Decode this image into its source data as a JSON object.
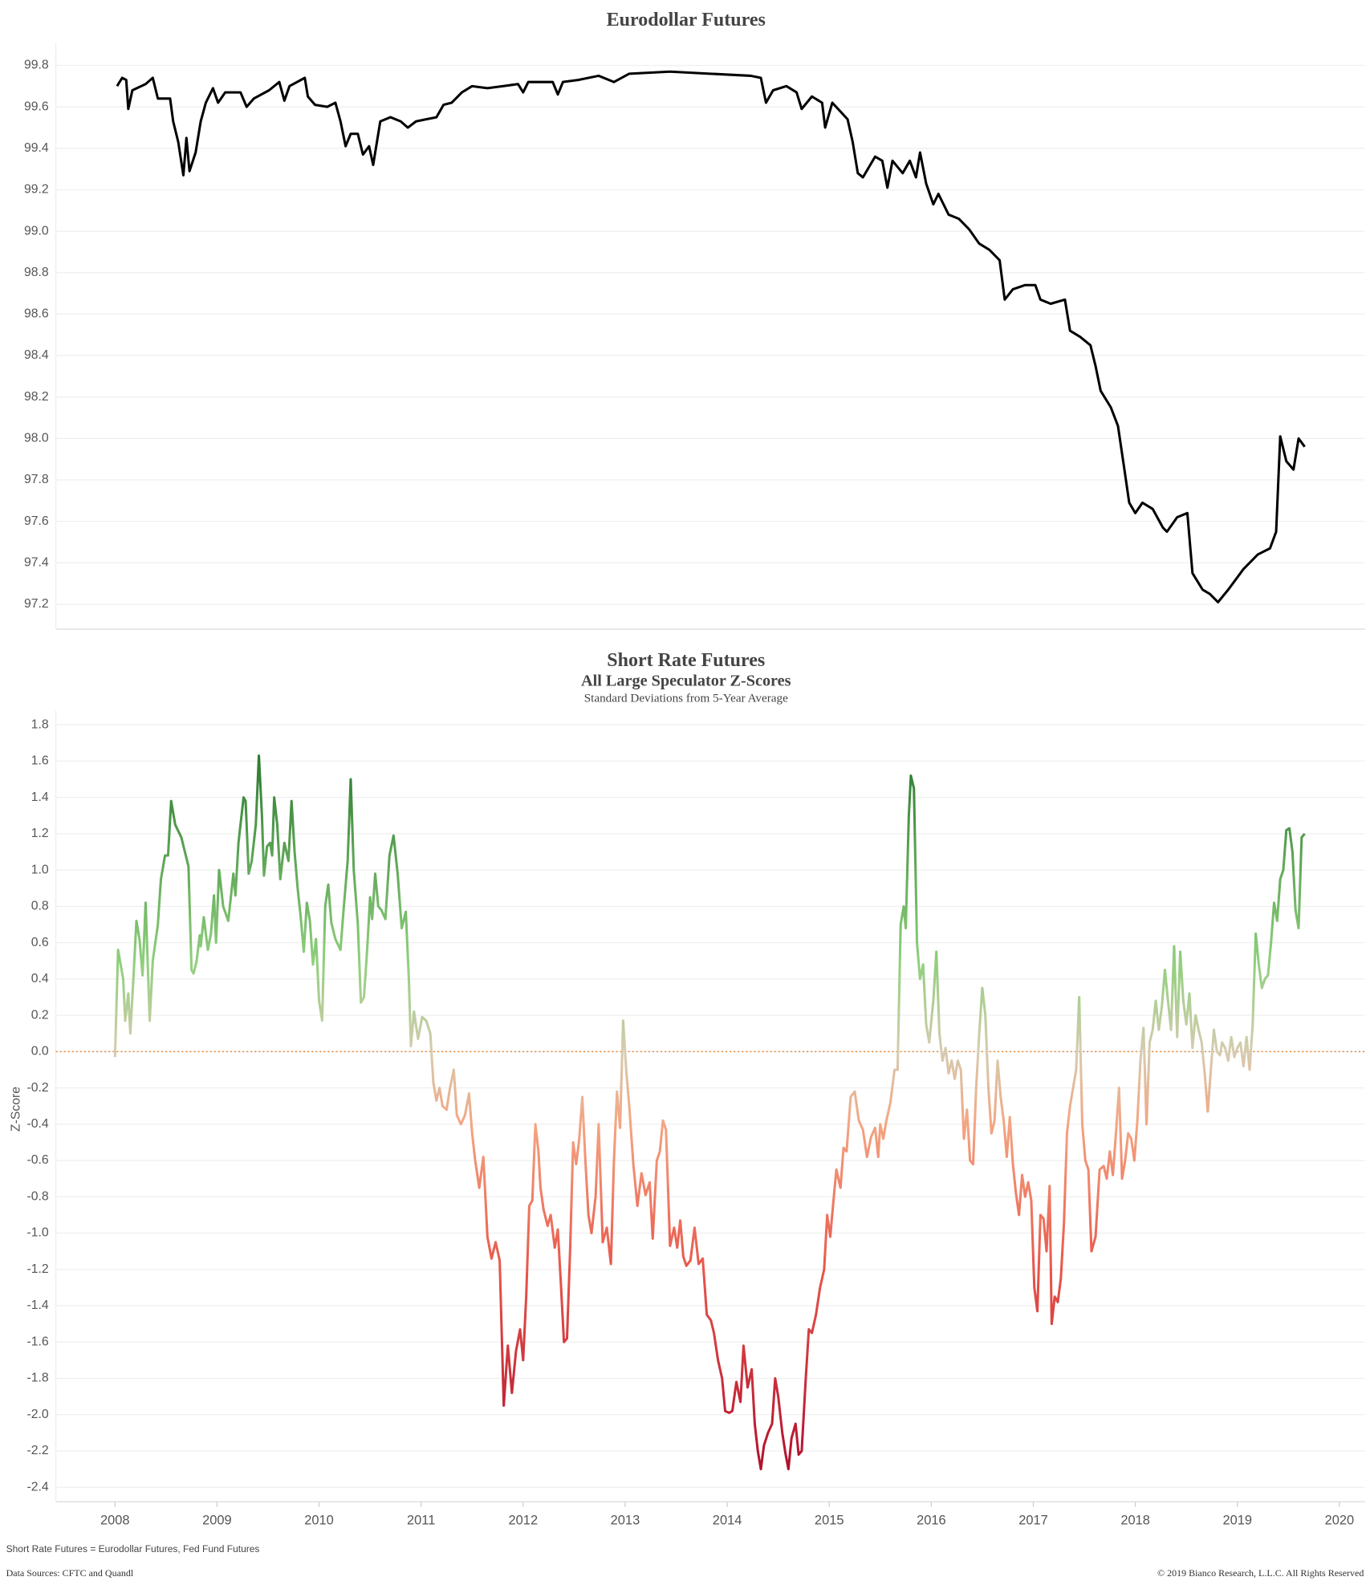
{
  "chart_data": [
    {
      "type": "line",
      "title": "Eurodollar Futures",
      "color": "#000000",
      "grid": true,
      "xlim": [
        2007.42,
        2020.25
      ],
      "ylim": [
        97.08,
        99.91
      ],
      "yticks": [
        97.2,
        97.4,
        97.6,
        97.8,
        {
          "value": 98.0,
          "label": "98.0"
        },
        98.2,
        98.4,
        98.6,
        98.8,
        {
          "value": 99.0,
          "label": "99.0"
        },
        99.2,
        99.4,
        99.6,
        99.8
      ],
      "x": [
        2008.02,
        2008.07,
        2008.11,
        2008.13,
        2008.17,
        2008.3,
        2008.37,
        2008.42,
        2008.54,
        2008.57,
        2008.62,
        2008.67,
        2008.7,
        2008.73,
        2008.79,
        2008.84,
        2008.89,
        2008.96,
        2009.01,
        2009.08,
        2009.23,
        2009.29,
        2009.36,
        2009.51,
        2009.61,
        2009.66,
        2009.71,
        2009.86,
        2009.89,
        2009.96,
        2010.08,
        2010.16,
        2010.21,
        2010.26,
        2010.31,
        2010.38,
        2010.43,
        2010.49,
        2010.53,
        2010.6,
        2010.7,
        2010.8,
        2010.87,
        2010.95,
        2011.05,
        2011.15,
        2011.22,
        2011.3,
        2011.4,
        2011.5,
        2011.65,
        2011.8,
        2011.95,
        2012.0,
        2012.05,
        2012.29,
        2012.34,
        2012.39,
        2012.54,
        2012.74,
        2012.89,
        2013.04,
        2013.44,
        2013.83,
        2014.23,
        2014.33,
        2014.38,
        2014.45,
        2014.58,
        2014.68,
        2014.73,
        2014.83,
        2014.93,
        2014.96,
        2015.03,
        2015.18,
        2015.23,
        2015.28,
        2015.33,
        2015.45,
        2015.52,
        2015.57,
        2015.62,
        2015.72,
        2015.79,
        2015.85,
        2015.89,
        2015.95,
        2016.02,
        2016.07,
        2016.17,
        2016.27,
        2016.37,
        2016.47,
        2016.57,
        2016.67,
        2016.72,
        2016.8,
        2016.92,
        2017.02,
        2017.07,
        2017.17,
        2017.31,
        2017.36,
        2017.46,
        2017.56,
        2017.61,
        2017.66,
        2017.76,
        2017.83,
        2017.89,
        2017.94,
        2018.0,
        2018.07,
        2018.17,
        2018.27,
        2018.31,
        2018.41,
        2018.51,
        2018.56,
        2018.66,
        2018.73,
        2018.81,
        2018.91,
        2019.06,
        2019.2,
        2019.32,
        2019.38,
        2019.42,
        2019.48,
        2019.55,
        2019.6,
        2019.66
      ],
      "values": [
        99.7,
        99.74,
        99.73,
        99.59,
        99.68,
        99.71,
        99.74,
        99.64,
        99.64,
        99.53,
        99.43,
        99.27,
        99.45,
        99.29,
        99.38,
        99.53,
        99.62,
        99.69,
        99.62,
        99.67,
        99.67,
        99.6,
        99.64,
        99.68,
        99.72,
        99.63,
        99.7,
        99.74,
        99.65,
        99.61,
        99.6,
        99.62,
        99.53,
        99.41,
        99.47,
        99.47,
        99.37,
        99.41,
        99.32,
        99.53,
        99.55,
        99.53,
        99.5,
        99.53,
        99.54,
        99.55,
        99.61,
        99.62,
        99.67,
        99.7,
        99.69,
        99.7,
        99.71,
        99.67,
        99.72,
        99.72,
        99.66,
        99.72,
        99.73,
        99.75,
        99.72,
        99.76,
        99.77,
        99.76,
        99.75,
        99.74,
        99.62,
        99.68,
        99.7,
        99.67,
        99.59,
        99.65,
        99.62,
        99.5,
        99.62,
        99.54,
        99.43,
        99.28,
        99.26,
        99.36,
        99.34,
        99.21,
        99.34,
        99.28,
        99.34,
        99.26,
        99.38,
        99.23,
        99.13,
        99.18,
        99.08,
        99.06,
        99.01,
        98.94,
        98.91,
        98.86,
        98.67,
        98.72,
        98.74,
        98.74,
        98.67,
        98.65,
        98.67,
        98.52,
        98.49,
        98.45,
        98.35,
        98.23,
        98.15,
        98.06,
        97.86,
        97.69,
        97.64,
        97.69,
        97.66,
        97.57,
        97.55,
        97.62,
        97.64,
        97.35,
        97.27,
        97.25,
        97.21,
        97.27,
        97.37,
        97.44,
        97.47,
        97.55,
        98.01,
        97.89,
        97.85,
        98.0,
        97.96
      ]
    },
    {
      "type": "line",
      "title": "Short Rate Futures",
      "subtitle": "All Large Speculator Z-Scores",
      "note": "Standard Deviations from 5-Year Average",
      "ylabel": "Z-Score",
      "grid": true,
      "xlim": [
        2007.42,
        2020.25
      ],
      "ylim": [
        -2.48,
        1.88
      ],
      "xticks": [
        2008,
        2009,
        2010,
        2011,
        2012,
        2013,
        2014,
        2015,
        2016,
        2017,
        2018,
        2019,
        2020
      ],
      "yticks": [
        -2.4,
        -2.2,
        {
          "value": -2.0,
          "label": "-2.0"
        },
        -1.8,
        -1.6,
        -1.4,
        -1.2,
        {
          "value": -1.0,
          "label": "-1.0"
        },
        -0.8,
        -0.6,
        -0.4,
        -0.2,
        {
          "value": 0.0,
          "label": "0.0"
        },
        0.2,
        0.4,
        0.6,
        0.8,
        {
          "value": 1.0,
          "label": "1.0"
        },
        1.2,
        1.4,
        1.6,
        1.8
      ],
      "reference_line": {
        "value": 0,
        "color": "#e8822a",
        "style": "dotted"
      },
      "color_stops": [
        {
          "value": 1.6,
          "color": "#2f7d32"
        },
        {
          "value": 0.5,
          "color": "#8fcf7c"
        },
        {
          "value": 0,
          "color": "#d6ccb0"
        },
        {
          "value": -0.4,
          "color": "#f4a582"
        },
        {
          "value": -1.2,
          "color": "#e8564a"
        },
        {
          "value": -2.3,
          "color": "#b0102e"
        }
      ],
      "x": [
        2008.0,
        2008.03,
        2008.08,
        2008.1,
        2008.13,
        2008.15,
        2008.18,
        2008.21,
        2008.24,
        2008.27,
        2008.3,
        2008.34,
        2008.37,
        2008.42,
        2008.45,
        2008.49,
        2008.52,
        2008.55,
        2008.59,
        2008.65,
        2008.72,
        2008.75,
        2008.77,
        2008.8,
        2008.83,
        2008.84,
        2008.87,
        2008.91,
        2008.94,
        2008.97,
        2008.99,
        2009.02,
        2009.06,
        2009.11,
        2009.16,
        2009.18,
        2009.21,
        2009.26,
        2009.28,
        2009.31,
        2009.34,
        2009.38,
        2009.41,
        2009.44,
        2009.46,
        2009.49,
        2009.52,
        2009.54,
        2009.56,
        2009.59,
        2009.62,
        2009.66,
        2009.7,
        2009.73,
        2009.76,
        2009.79,
        2009.82,
        2009.85,
        2009.88,
        2009.91,
        2009.94,
        2009.97,
        2010.0,
        2010.03,
        2010.06,
        2010.09,
        2010.12,
        2010.16,
        2010.21,
        2010.24,
        2010.28,
        2010.31,
        2010.34,
        2010.38,
        2010.41,
        2010.44,
        2010.47,
        2010.5,
        2010.52,
        2010.55,
        2010.58,
        2010.61,
        2010.65,
        2010.69,
        2010.73,
        2010.77,
        2010.81,
        2010.85,
        2010.88,
        2010.9,
        2010.93,
        2010.97,
        2011.01,
        2011.05,
        2011.09,
        2011.12,
        2011.15,
        2011.18,
        2011.21,
        2011.25,
        2011.28,
        2011.32,
        2011.35,
        2011.39,
        2011.43,
        2011.47,
        2011.5,
        2011.53,
        2011.57,
        2011.61,
        2011.65,
        2011.69,
        2011.73,
        2011.77,
        2011.81,
        2011.85,
        2011.89,
        2011.93,
        2011.97,
        2012.0,
        2012.03,
        2012.06,
        2012.09,
        2012.12,
        2012.15,
        2012.17,
        2012.2,
        2012.24,
        2012.27,
        2012.31,
        2012.34,
        2012.37,
        2012.4,
        2012.43,
        2012.46,
        2012.49,
        2012.52,
        2012.55,
        2012.58,
        2012.61,
        2012.64,
        2012.67,
        2012.71,
        2012.74,
        2012.78,
        2012.82,
        2012.86,
        2012.89,
        2012.92,
        2012.95,
        2012.98,
        2013.01,
        2013.04,
        2013.08,
        2013.12,
        2013.16,
        2013.2,
        2013.24,
        2013.27,
        2013.31,
        2013.34,
        2013.37,
        2013.4,
        2013.44,
        2013.48,
        2013.51,
        2013.54,
        2013.57,
        2013.6,
        2013.64,
        2013.68,
        2013.72,
        2013.76,
        2013.8,
        2013.84,
        2013.87,
        2013.91,
        2013.95,
        2013.98,
        2014.02,
        2014.05,
        2014.09,
        2014.13,
        2014.16,
        2014.2,
        2014.24,
        2014.27,
        2014.3,
        2014.33,
        2014.36,
        2014.4,
        2014.44,
        2014.47,
        2014.5,
        2014.54,
        2014.57,
        2014.6,
        2014.63,
        2014.67,
        2014.7,
        2014.73,
        2014.77,
        2014.8,
        2014.83,
        2014.87,
        2014.91,
        2014.95,
        2014.98,
        2015.01,
        2015.04,
        2015.07,
        2015.11,
        2015.14,
        2015.17,
        2015.21,
        2015.25,
        2015.29,
        2015.33,
        2015.37,
        2015.41,
        2015.45,
        2015.48,
        2015.5,
        2015.53,
        2015.56,
        2015.6,
        2015.64,
        2015.67,
        2015.7,
        2015.73,
        2015.75,
        2015.78,
        2015.8,
        2015.83,
        2015.86,
        2015.89,
        2015.92,
        2015.95,
        2015.98,
        2016.02,
        2016.05,
        2016.08,
        2016.11,
        2016.14,
        2016.17,
        2016.2,
        2016.23,
        2016.26,
        2016.29,
        2016.32,
        2016.35,
        2016.38,
        2016.41,
        2016.44,
        2016.47,
        2016.5,
        2016.53,
        2016.56,
        2016.59,
        2016.62,
        2016.65,
        2016.68,
        2016.71,
        2016.74,
        2016.77,
        2016.8,
        2016.83,
        2016.86,
        2016.89,
        2016.92,
        2016.95,
        2016.98,
        2017.01,
        2017.04,
        2017.07,
        2017.1,
        2017.13,
        2017.16,
        2017.18,
        2017.21,
        2017.24,
        2017.27,
        2017.3,
        2017.33,
        2017.36,
        2017.39,
        2017.42,
        2017.45,
        2017.48,
        2017.51,
        2017.54,
        2017.57,
        2017.61,
        2017.65,
        2017.69,
        2017.72,
        2017.75,
        2017.78,
        2017.81,
        2017.84,
        2017.87,
        2017.9,
        2017.93,
        2017.96,
        2017.99,
        2018.02,
        2018.05,
        2018.08,
        2018.11,
        2018.14,
        2018.17,
        2018.2,
        2018.23,
        2018.26,
        2018.29,
        2018.32,
        2018.35,
        2018.38,
        2018.41,
        2018.44,
        2018.47,
        2018.5,
        2018.53,
        2018.56,
        2018.59,
        2018.62,
        2018.65,
        2018.68,
        2018.71,
        2018.74,
        2018.77,
        2018.8,
        2018.83,
        2018.85,
        2018.88,
        2018.91,
        2018.94,
        2018.97,
        2019.0,
        2019.03,
        2019.06,
        2019.09,
        2019.12,
        2019.15,
        2019.18,
        2019.21,
        2019.24,
        2019.27,
        2019.3,
        2019.33,
        2019.36,
        2019.39,
        2019.42,
        2019.45,
        2019.48,
        2019.51,
        2019.54,
        2019.57,
        2019.6,
        2019.63,
        2019.66
      ],
      "values": [
        -0.03,
        0.56,
        0.4,
        0.17,
        0.32,
        0.1,
        0.4,
        0.72,
        0.62,
        0.42,
        0.82,
        0.17,
        0.5,
        0.7,
        0.95,
        1.08,
        1.08,
        1.38,
        1.25,
        1.18,
        1.02,
        0.45,
        0.43,
        0.5,
        0.64,
        0.58,
        0.74,
        0.56,
        0.65,
        0.86,
        0.6,
        1.0,
        0.8,
        0.72,
        0.98,
        0.86,
        1.15,
        1.4,
        1.38,
        0.98,
        1.05,
        1.25,
        1.63,
        1.3,
        0.97,
        1.13,
        1.15,
        1.08,
        1.4,
        1.25,
        0.95,
        1.15,
        1.05,
        1.38,
        1.1,
        0.9,
        0.74,
        0.55,
        0.82,
        0.72,
        0.48,
        0.62,
        0.28,
        0.17,
        0.8,
        0.92,
        0.71,
        0.62,
        0.56,
        0.78,
        1.05,
        1.5,
        1.0,
        0.7,
        0.27,
        0.3,
        0.55,
        0.85,
        0.73,
        0.98,
        0.8,
        0.78,
        0.73,
        1.08,
        1.19,
        0.98,
        0.68,
        0.77,
        0.4,
        0.03,
        0.22,
        0.07,
        0.19,
        0.17,
        0.1,
        -0.17,
        -0.27,
        -0.2,
        -0.3,
        -0.32,
        -0.21,
        -0.1,
        -0.35,
        -0.4,
        -0.35,
        -0.23,
        -0.45,
        -0.6,
        -0.75,
        -0.58,
        -1.02,
        -1.14,
        -1.05,
        -1.15,
        -1.95,
        -1.62,
        -1.88,
        -1.65,
        -1.53,
        -1.7,
        -1.35,
        -0.85,
        -0.82,
        -0.4,
        -0.55,
        -0.75,
        -0.87,
        -0.96,
        -0.9,
        -1.08,
        -0.98,
        -1.28,
        -1.6,
        -1.58,
        -1.1,
        -0.5,
        -0.62,
        -0.48,
        -0.25,
        -0.6,
        -0.9,
        -1.0,
        -0.8,
        -0.4,
        -1.05,
        -0.97,
        -1.17,
        -0.6,
        -0.22,
        -0.42,
        0.17,
        -0.1,
        -0.3,
        -0.62,
        -0.85,
        -0.67,
        -0.79,
        -0.72,
        -1.03,
        -0.6,
        -0.55,
        -0.38,
        -0.43,
        -1.07,
        -0.97,
        -1.08,
        -0.93,
        -1.13,
        -1.18,
        -1.15,
        -0.97,
        -1.17,
        -1.14,
        -1.45,
        -1.48,
        -1.55,
        -1.7,
        -1.8,
        -1.98,
        -1.99,
        -1.98,
        -1.82,
        -1.93,
        -1.62,
        -1.85,
        -1.75,
        -2.05,
        -2.2,
        -2.3,
        -2.17,
        -2.1,
        -2.05,
        -1.8,
        -1.9,
        -2.1,
        -2.21,
        -2.3,
        -2.13,
        -2.05,
        -2.22,
        -2.2,
        -1.8,
        -1.53,
        -1.55,
        -1.45,
        -1.3,
        -1.2,
        -0.9,
        -1.02,
        -0.83,
        -0.65,
        -0.75,
        -0.53,
        -0.55,
        -0.25,
        -0.22,
        -0.38,
        -0.43,
        -0.58,
        -0.47,
        -0.42,
        -0.58,
        -0.4,
        -0.48,
        -0.38,
        -0.28,
        -0.1,
        -0.1,
        0.7,
        0.8,
        0.68,
        1.3,
        1.52,
        1.45,
        0.6,
        0.4,
        0.48,
        0.15,
        0.05,
        0.28,
        0.55,
        0.1,
        -0.05,
        0.02,
        -0.12,
        -0.05,
        -0.15,
        -0.05,
        -0.1,
        -0.48,
        -0.32,
        -0.6,
        -0.62,
        -0.2,
        0.1,
        0.35,
        0.2,
        -0.2,
        -0.45,
        -0.38,
        -0.05,
        -0.25,
        -0.38,
        -0.58,
        -0.36,
        -0.62,
        -0.78,
        -0.9,
        -0.68,
        -0.8,
        -0.72,
        -0.82,
        -1.3,
        -1.43,
        -0.9,
        -0.92,
        -1.1,
        -0.74,
        -1.5,
        -1.35,
        -1.38,
        -1.25,
        -0.95,
        -0.45,
        -0.3,
        -0.2,
        -0.1,
        0.3,
        -0.4,
        -0.6,
        -0.65,
        -1.1,
        -1.02,
        -0.65,
        -0.63,
        -0.7,
        -0.55,
        -0.68,
        -0.45,
        -0.2,
        -0.7,
        -0.6,
        -0.45,
        -0.48,
        -0.6,
        -0.38,
        -0.05,
        0.13,
        -0.4,
        0.05,
        0.12,
        0.28,
        0.12,
        0.25,
        0.45,
        0.28,
        0.12,
        0.58,
        0.08,
        0.55,
        0.28,
        0.15,
        0.32,
        0.02,
        0.2,
        0.12,
        0.05,
        -0.12,
        -0.33,
        -0.1,
        0.12,
        0.0,
        -0.02,
        0.05,
        0.02,
        -0.05,
        0.08,
        -0.03,
        0.02,
        0.05,
        -0.08,
        0.08,
        -0.1,
        0.15,
        0.65,
        0.48,
        0.35,
        0.4,
        0.42,
        0.6,
        0.82,
        0.72,
        0.95,
        1.0,
        1.22,
        1.23,
        1.1,
        0.78,
        0.68,
        1.18,
        1.2
      ]
    }
  ],
  "footer": {
    "note": "Short Rate Futures = Eurodollar Futures, Fed Fund Futures",
    "source": "Data Sources: CFTC and Quandl",
    "copyright": "© 2019 Bianco Research, L.L.C. All Rights Reserved"
  }
}
